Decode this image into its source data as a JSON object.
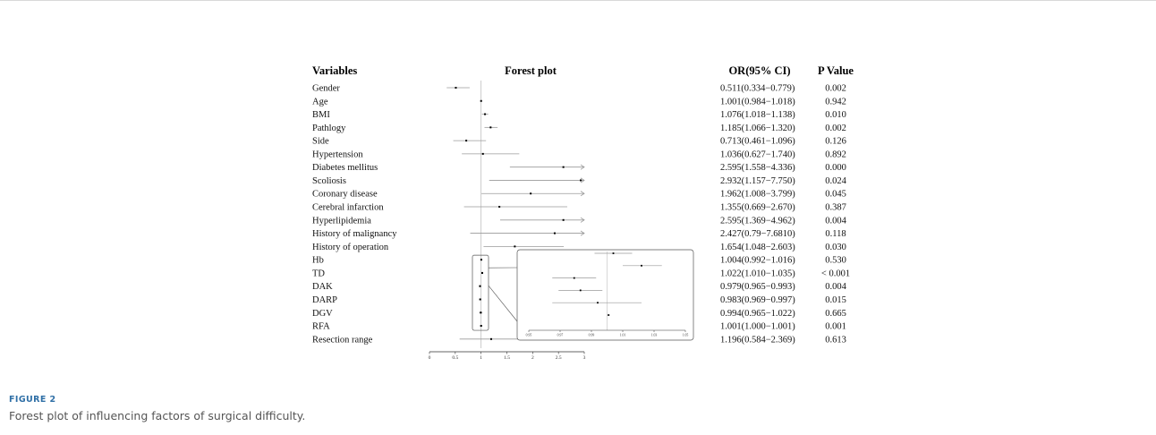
{
  "figure": {
    "label": "FIGURE 2",
    "caption": "Forest plot of influencing factors of surgical difficulty."
  },
  "colors": {
    "marker": "#000000",
    "ci_line": "#9a9a9a",
    "reference_line": "#bfbfbf",
    "figure_label": "#2f6fa6"
  },
  "chart_data": {
    "type": "forest",
    "headers": {
      "variables": "Variables",
      "plot": "Forest plot",
      "or": "OR(95% CI)",
      "p": "P Value"
    },
    "reference_value": 1,
    "xlim": [
      0,
      3
    ],
    "x_ticks": [
      "0",
      "0.5",
      "1",
      "1.5",
      "2",
      "2.5",
      "3"
    ],
    "rows": [
      {
        "name": "Gender",
        "or": 0.511,
        "lo": 0.334,
        "hi": 0.779,
        "or_text": "0.511(0.334−0.779)",
        "p": "0.002"
      },
      {
        "name": "Age",
        "or": 1.001,
        "lo": 0.984,
        "hi": 1.018,
        "or_text": "1.001(0.984−1.018)",
        "p": "0.942"
      },
      {
        "name": "BMI",
        "or": 1.076,
        "lo": 1.018,
        "hi": 1.138,
        "or_text": "1.076(1.018−1.138)",
        "p": "0.010"
      },
      {
        "name": "Pathlogy",
        "or": 1.185,
        "lo": 1.066,
        "hi": 1.32,
        "or_text": "1.185(1.066−1.320)",
        "p": "0.002"
      },
      {
        "name": "Side",
        "or": 0.713,
        "lo": 0.461,
        "hi": 1.096,
        "or_text": "0.713(0.461−1.096)",
        "p": "0.126"
      },
      {
        "name": "Hypertension",
        "or": 1.036,
        "lo": 0.627,
        "hi": 1.74,
        "or_text": "1.036(0.627−1.740)",
        "p": "0.892"
      },
      {
        "name": "Diabetes mellitus",
        "or": 2.595,
        "lo": 1.558,
        "hi": 4.336,
        "or_text": "2.595(1.558−4.336)",
        "p": "0.000",
        "arrow": true
      },
      {
        "name": "Scoliosis",
        "or": 2.932,
        "lo": 1.157,
        "hi": 7.75,
        "or_text": "2.932(1.157−7.750)",
        "p": "0.024",
        "arrow": true
      },
      {
        "name": "Coronary disease",
        "or": 1.962,
        "lo": 1.008,
        "hi": 3.799,
        "or_text": "1.962(1.008−3.799)",
        "p": "0.045",
        "arrow": true
      },
      {
        "name": "Cerebral infarction",
        "or": 1.355,
        "lo": 0.669,
        "hi": 2.67,
        "or_text": "1.355(0.669−2.670)",
        "p": "0.387"
      },
      {
        "name": "Hyperlipidemia",
        "or": 2.595,
        "lo": 1.369,
        "hi": 4.962,
        "or_text": "2.595(1.369−4.962)",
        "p": "0.004",
        "arrow": true
      },
      {
        "name": "History of malignancy",
        "or": 2.427,
        "lo": 0.79,
        "hi": 7.681,
        "or_text": "2.427(0.79−7.6810)",
        "p": "0.118",
        "arrow": true
      },
      {
        "name": "History of operation",
        "or": 1.654,
        "lo": 1.048,
        "hi": 2.603,
        "or_text": "1.654(1.048−2.603)",
        "p": "0.030"
      },
      {
        "name": "Hb",
        "or": 1.004,
        "lo": 0.992,
        "hi": 1.016,
        "or_text": "1.004(0.992−1.016)",
        "p": "0.530",
        "inset": true
      },
      {
        "name": "TD",
        "or": 1.022,
        "lo": 1.01,
        "hi": 1.035,
        "or_text": "1.022(1.010−1.035)",
        "p": "< 0.001",
        "inset": true
      },
      {
        "name": "DAK",
        "or": 0.979,
        "lo": 0.965,
        "hi": 0.993,
        "or_text": "0.979(0.965−0.993)",
        "p": "0.004",
        "inset": true
      },
      {
        "name": "DARP",
        "or": 0.983,
        "lo": 0.969,
        "hi": 0.997,
        "or_text": "0.983(0.969−0.997)",
        "p": "0.015",
        "inset": true
      },
      {
        "name": "DGV",
        "or": 0.994,
        "lo": 0.965,
        "hi": 1.022,
        "or_text": "0.994(0.965−1.022)",
        "p": "0.665",
        "inset": true
      },
      {
        "name": "RFA",
        "or": 1.001,
        "lo": 1.0,
        "hi": 1.001,
        "or_text": "1.001(1.000−1.001)",
        "p": "0.001",
        "inset": true
      },
      {
        "name": "Resection range",
        "or": 1.196,
        "lo": 0.584,
        "hi": 2.369,
        "or_text": "1.196(0.584−2.369)",
        "p": "0.613"
      }
    ],
    "inset": {
      "xlim": [
        0.95,
        1.05
      ],
      "x_ticks": [
        "0.95",
        "0.97",
        "0.99",
        "1.01",
        "1.03",
        "1.05"
      ]
    }
  }
}
